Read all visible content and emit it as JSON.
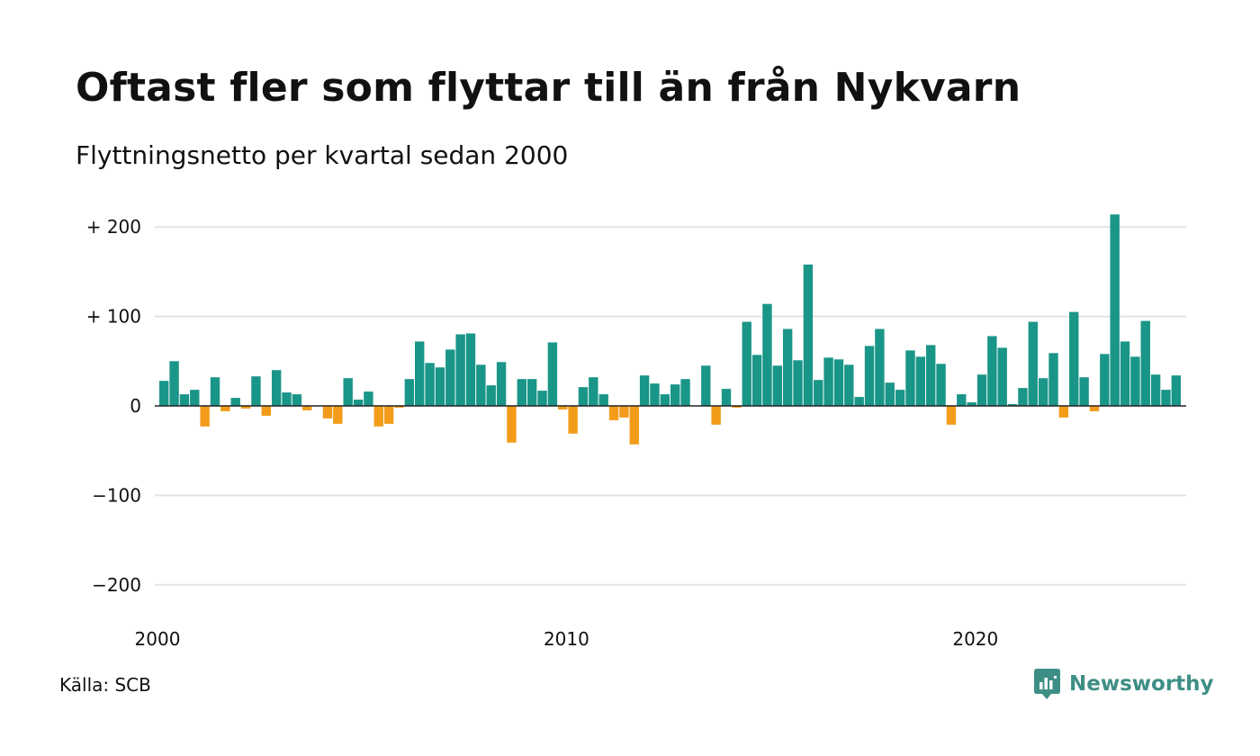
{
  "title": "Oftast fler som flyttar till än från Nykvarn",
  "subtitle": "Flyttningsnetto per kvartal sedan 2000",
  "source": "Källa: SCB",
  "brand": {
    "name": "Newsworthy",
    "icon": "newsworthy-logo-icon",
    "color": "#3d8f86"
  },
  "colors": {
    "positive": "#1a9688",
    "negative": "#f39c1a",
    "grid": "#e3e3e3",
    "baseline": "#222222"
  },
  "chart_data": {
    "type": "bar",
    "title": "Oftast fler som flyttar till än från Nykvarn",
    "subtitle": "Flyttningsnetto per kvartal sedan 2000",
    "start_year": 2000,
    "ylim": [
      -200,
      200
    ],
    "y_ticks": [
      200,
      100,
      0,
      -100,
      -200
    ],
    "y_tick_labels": [
      "+ 200",
      "+ 100",
      "0",
      "−100",
      "−200"
    ],
    "x_tick_labels": [
      "2000",
      "2010",
      "2020"
    ],
    "x_tick_years": [
      2000,
      2010,
      2020
    ],
    "grid": true,
    "legend": "none",
    "values": [
      28,
      50,
      13,
      18,
      -23,
      32,
      -6,
      9,
      -3,
      33,
      -11,
      40,
      15,
      13,
      -5,
      0,
      -14,
      -20,
      31,
      7,
      16,
      -23,
      -20,
      -2,
      30,
      72,
      48,
      43,
      63,
      80,
      81,
      46,
      23,
      49,
      -41,
      30,
      30,
      17,
      71,
      -4,
      -31,
      21,
      32,
      13,
      -16,
      -13,
      -43,
      34,
      25,
      13,
      24,
      30,
      0,
      45,
      -21,
      19,
      -2,
      94,
      57,
      114,
      45,
      86,
      51,
      158,
      29,
      54,
      52,
      46,
      10,
      67,
      86,
      26,
      18,
      62,
      55,
      68,
      47,
      -21,
      13,
      4,
      35,
      78,
      65,
      2,
      20,
      94,
      31,
      59,
      -13,
      105,
      32,
      -6,
      58,
      214,
      72,
      55,
      95,
      35,
      18,
      34
    ]
  }
}
